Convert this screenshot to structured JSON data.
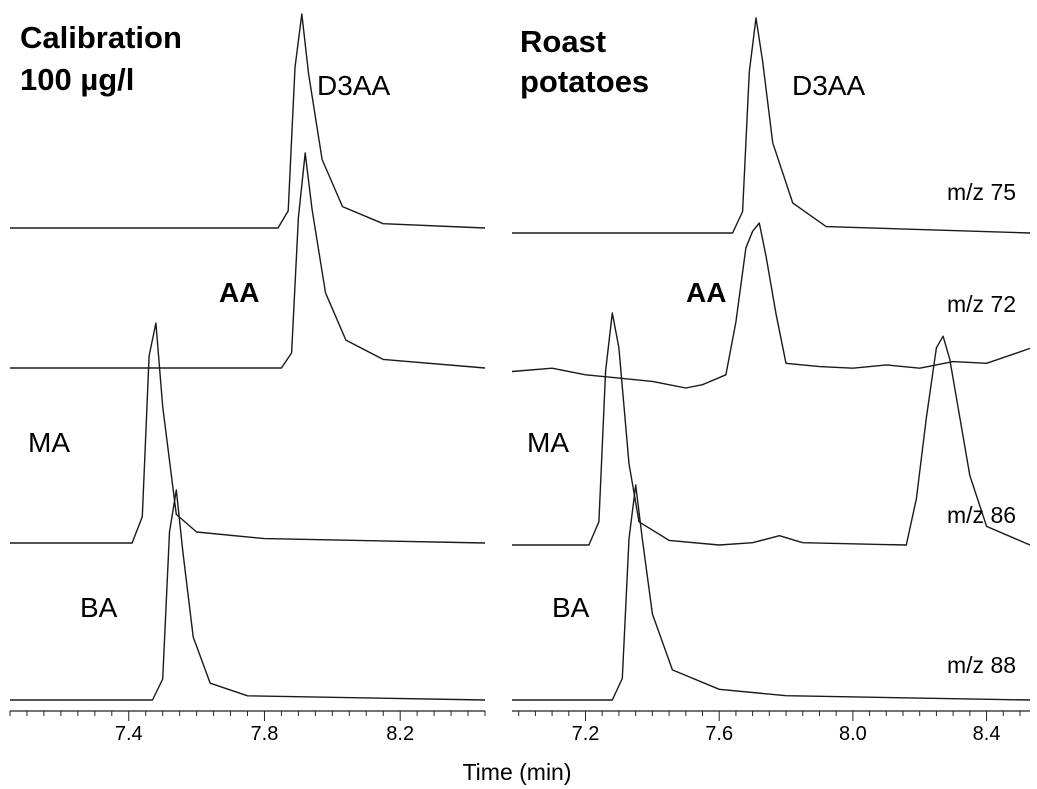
{
  "xlabel": "Time (min)",
  "chart_data": [
    {
      "type": "line",
      "title": "Calibration\n100 µg/l",
      "xlabel": "Time (min)",
      "tick_labels": [
        "7.4",
        "7.8",
        "8.2"
      ],
      "xlim": [
        7.05,
        8.45
      ],
      "grid": false,
      "series": [
        {
          "name": "D3AA",
          "baseline_level": 1,
          "x": [
            7.05,
            7.84,
            7.87,
            7.89,
            7.91,
            7.93,
            7.97,
            8.03,
            8.15,
            8.45
          ],
          "y": [
            0,
            0,
            0.08,
            0.75,
            1.0,
            0.72,
            0.32,
            0.1,
            0.02,
            0
          ]
        },
        {
          "name": "AA",
          "baseline_level": 2,
          "x": [
            7.05,
            7.85,
            7.88,
            7.9,
            7.92,
            7.94,
            7.98,
            8.04,
            8.15,
            8.45
          ],
          "y": [
            0,
            0,
            0.07,
            0.7,
            1.0,
            0.74,
            0.35,
            0.13,
            0.04,
            0
          ]
        },
        {
          "name": "MA",
          "baseline_level": 3,
          "x": [
            7.05,
            7.41,
            7.44,
            7.46,
            7.48,
            7.5,
            7.54,
            7.6,
            7.8,
            8.45
          ],
          "y": [
            0,
            0,
            0.12,
            0.85,
            1.0,
            0.62,
            0.13,
            0.05,
            0.02,
            0
          ]
        },
        {
          "name": "BA",
          "baseline_level": 4,
          "x": [
            7.05,
            7.47,
            7.5,
            7.52,
            7.54,
            7.56,
            7.59,
            7.64,
            7.75,
            8.45
          ],
          "y": [
            0,
            0,
            0.1,
            0.8,
            1.0,
            0.7,
            0.3,
            0.08,
            0.02,
            0
          ]
        }
      ],
      "labels": [
        {
          "text": "D3AA",
          "bold": false
        },
        {
          "text": "AA",
          "bold": true
        },
        {
          "text": "MA",
          "bold": false
        },
        {
          "text": "BA",
          "bold": false
        }
      ]
    },
    {
      "type": "line",
      "title": "Roast\npotatoes",
      "xlabel": "Time (min)",
      "tick_labels": [
        "7.2",
        "7.6",
        "8.0",
        "8.4"
      ],
      "xlim": [
        6.98,
        8.53
      ],
      "grid": false,
      "series": [
        {
          "name": "m/z 75",
          "baseline_level": 1,
          "x": [
            6.98,
            7.64,
            7.67,
            7.69,
            7.71,
            7.73,
            7.76,
            7.82,
            7.92,
            8.53
          ],
          "y": [
            0,
            0,
            0.1,
            0.75,
            1.0,
            0.8,
            0.42,
            0.14,
            0.03,
            0
          ]
        },
        {
          "name": "m/z 72",
          "baseline_level": 2,
          "x": [
            6.98,
            7.1,
            7.2,
            7.3,
            7.4,
            7.5,
            7.55,
            7.62,
            7.65,
            7.68,
            7.7,
            7.72,
            7.74,
            7.77,
            7.8,
            7.9,
            8.0,
            8.1,
            8.2,
            8.3,
            8.4,
            8.53
          ],
          "y": [
            0.1,
            0.12,
            0.08,
            0.06,
            0.04,
            0.0,
            0.02,
            0.08,
            0.4,
            0.85,
            0.95,
            1.0,
            0.8,
            0.45,
            0.15,
            0.13,
            0.12,
            0.14,
            0.12,
            0.16,
            0.15,
            0.24
          ]
        },
        {
          "name": "m/z 86",
          "baseline_level": 3,
          "x": [
            6.98,
            7.21,
            7.24,
            7.26,
            7.28,
            7.3,
            7.33,
            7.36,
            7.45,
            7.6,
            7.7,
            7.78,
            7.85,
            8.16,
            8.19,
            8.22,
            8.25,
            8.27,
            8.29,
            8.32,
            8.35,
            8.4,
            8.53
          ],
          "y": [
            0,
            0,
            0.1,
            0.75,
            1.0,
            0.85,
            0.35,
            0.1,
            0.02,
            0,
            0.01,
            0.04,
            0.01,
            0,
            0.2,
            0.55,
            0.85,
            0.9,
            0.8,
            0.55,
            0.3,
            0.08,
            0
          ]
        },
        {
          "name": "m/z 88",
          "baseline_level": 4,
          "x": [
            6.98,
            7.28,
            7.31,
            7.33,
            7.35,
            7.37,
            7.4,
            7.46,
            7.6,
            7.8,
            8.53
          ],
          "y": [
            0,
            0,
            0.1,
            0.75,
            1.0,
            0.75,
            0.4,
            0.14,
            0.05,
            0.02,
            0
          ]
        }
      ],
      "labels": [
        {
          "text": "D3AA",
          "bold": false
        },
        {
          "text": "AA",
          "bold": true
        },
        {
          "text": "MA",
          "bold": false
        },
        {
          "text": "BA",
          "bold": false
        }
      ]
    }
  ]
}
